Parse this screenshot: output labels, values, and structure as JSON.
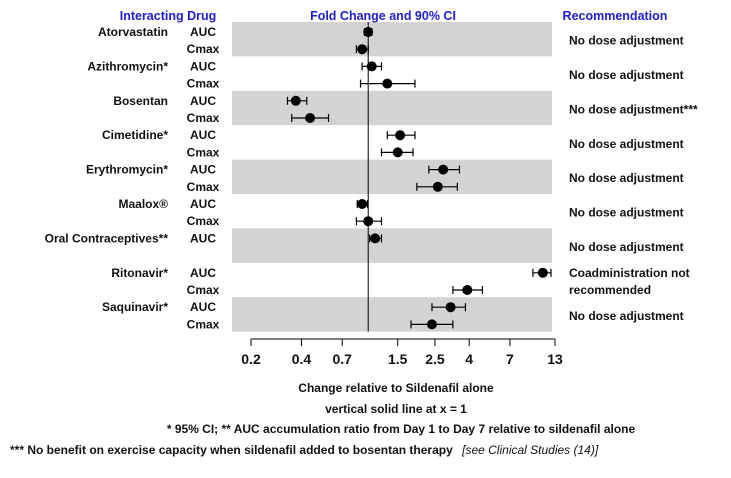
{
  "chart_data": {
    "type": "forest",
    "x_scale": "log",
    "xlim": [
      0.2,
      13
    ],
    "ref_line_x": 1,
    "headers": {
      "drug": "Interacting Drug",
      "plot": "Fold Change and 90% CI",
      "recommendation": "Recommendation"
    },
    "x_ticks": [
      {
        "value": 0.2,
        "label": "0.2"
      },
      {
        "value": 0.4,
        "label": "0.4"
      },
      {
        "value": 0.7,
        "label": "0.7"
      },
      {
        "value": 1.5,
        "label": "1.5"
      },
      {
        "value": 2.5,
        "label": "2.5"
      },
      {
        "value": 4,
        "label": "4"
      },
      {
        "value": 7,
        "label": "7"
      },
      {
        "value": 13,
        "label": "13"
      }
    ],
    "xlabel": "Change relative to Sildenafil alone",
    "xlabel_sub": "vertical solid line at x = 1",
    "footnote_1": "* 95% CI;  ** AUC accumulation ratio from Day 1 to Day 7 relative to sildenafil alone",
    "footnote_2_main": "*** No benefit on exercise capacity when sildenafil added to bosentan therapy",
    "footnote_2_ref": "[see Clinical Studies (14)]",
    "groups": [
      {
        "drug": "Atorvastatin",
        "shaded": true,
        "recommendation_lines": [
          "No dose adjustment"
        ],
        "rows": [
          {
            "param": "AUC",
            "est": 1.0,
            "lo": 0.95,
            "hi": 1.05
          },
          {
            "param": "Cmax",
            "est": 0.92,
            "lo": 0.85,
            "hi": 1.0
          }
        ]
      },
      {
        "drug": "Azithromycin*",
        "shaded": false,
        "recommendation_lines": [
          "No dose adjustment"
        ],
        "rows": [
          {
            "param": "AUC",
            "est": 1.05,
            "lo": 0.92,
            "hi": 1.2
          },
          {
            "param": "Cmax",
            "est": 1.3,
            "lo": 0.9,
            "hi": 1.9
          }
        ]
      },
      {
        "drug": "Bosentan",
        "shaded": true,
        "recommendation_lines": [
          "No dose adjustment***"
        ],
        "rows": [
          {
            "param": "AUC",
            "est": 0.37,
            "lo": 0.33,
            "hi": 0.43
          },
          {
            "param": "Cmax",
            "est": 0.45,
            "lo": 0.35,
            "hi": 0.58
          }
        ]
      },
      {
        "drug": "Cimetidine*",
        "shaded": false,
        "recommendation_lines": [
          "No dose adjustment"
        ],
        "rows": [
          {
            "param": "AUC",
            "est": 1.55,
            "lo": 1.3,
            "hi": 1.9
          },
          {
            "param": "Cmax",
            "est": 1.5,
            "lo": 1.2,
            "hi": 1.85
          }
        ]
      },
      {
        "drug": "Erythromycin*",
        "shaded": true,
        "recommendation_lines": [
          "No dose adjustment"
        ],
        "rows": [
          {
            "param": "AUC",
            "est": 2.8,
            "lo": 2.3,
            "hi": 3.5
          },
          {
            "param": "Cmax",
            "est": 2.6,
            "lo": 1.95,
            "hi": 3.4
          }
        ]
      },
      {
        "drug": "Maalox®",
        "shaded": false,
        "recommendation_lines": [
          "No dose adjustment"
        ],
        "rows": [
          {
            "param": "AUC",
            "est": 0.92,
            "lo": 0.86,
            "hi": 0.99
          },
          {
            "param": "Cmax",
            "est": 1.0,
            "lo": 0.85,
            "hi": 1.2
          }
        ]
      },
      {
        "drug": "Oral Contraceptives**",
        "shaded": true,
        "recommendation_lines": [
          "No dose adjustment"
        ],
        "rows": [
          {
            "param": "AUC",
            "est": 1.1,
            "lo": 1.02,
            "hi": 1.2
          }
        ]
      },
      {
        "drug": "Ritonavir*",
        "shaded": false,
        "recommendation_lines": [
          "Coadministration not",
          "recommended"
        ],
        "rows": [
          {
            "param": "AUC",
            "est": 11.0,
            "lo": 9.6,
            "hi": 12.3
          },
          {
            "param": "Cmax",
            "est": 3.9,
            "lo": 3.2,
            "hi": 4.8
          }
        ]
      },
      {
        "drug": "Saquinavir*",
        "shaded": true,
        "recommendation_lines": [
          "No dose adjustment"
        ],
        "rows": [
          {
            "param": "AUC",
            "est": 3.1,
            "lo": 2.4,
            "hi": 3.8
          },
          {
            "param": "Cmax",
            "est": 2.4,
            "lo": 1.8,
            "hi": 3.2
          }
        ]
      }
    ]
  }
}
